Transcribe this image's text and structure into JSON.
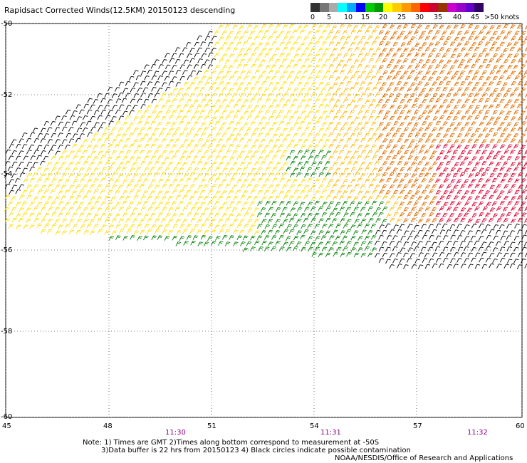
{
  "title": "Rapidsact Corrected Winds(12.5KM) 20150123 descending",
  "legend": {
    "colors": [
      "#333333",
      "#777777",
      "#aaaaaa",
      "#00ffff",
      "#00aaff",
      "#0000ff",
      "#00cc00",
      "#009900",
      "#ffff00",
      "#ffcc00",
      "#ff9900",
      "#ff6600",
      "#ff0000",
      "#cc0033",
      "#993300",
      "#cc00cc",
      "#9900cc",
      "#6600cc",
      "#330066"
    ],
    "labels": [
      "0",
      "5",
      "10",
      "15",
      "20",
      "25",
      "30",
      "35",
      "40",
      "45",
      ">50 knots"
    ]
  },
  "axes": {
    "x_ticks": [
      "45",
      "48",
      "51",
      "54",
      "57",
      "60"
    ],
    "y_ticks": [
      "-50",
      "-52",
      "-54",
      "-56",
      "-58",
      "-60"
    ],
    "time_labels": [
      "11:30",
      "11:31",
      "11:32"
    ]
  },
  "notes": {
    "line1": "Note: 1) Times are GMT 2)Times along bottom correspond to measurement at -50S",
    "line2": "3)Data buffer is 22 hrs from 20150123 4) Black circles indicate possible contamination",
    "credit": "NOAA/NESDIS/Office of Research and Applications"
  },
  "wind_colors": {
    "black": "#000000",
    "green": "#008000",
    "yellow": "#ffdd00",
    "gold": "#ffbb00",
    "orange": "#e07000",
    "red": "#dd0033"
  }
}
